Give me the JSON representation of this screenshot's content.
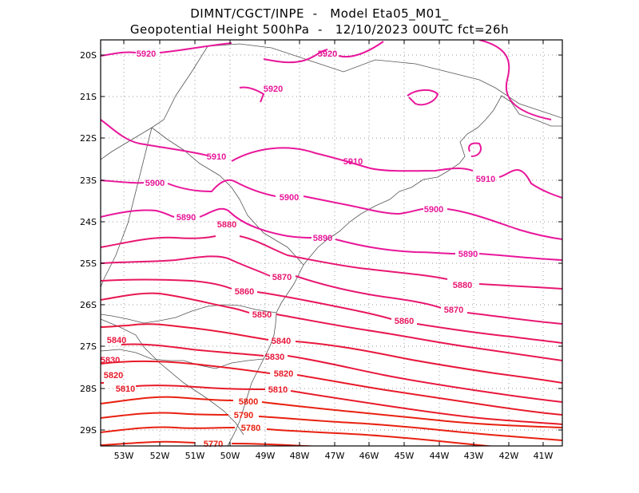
{
  "header": {
    "line1": "DIMNT/CGCT/INPE  -   Model Eta05_M01_",
    "line2": "Geopotential Height 500hPa  -   12/10/2023 00UTC fct=26h"
  },
  "axes": {
    "lat_labels": [
      "20S",
      "21S",
      "22S",
      "23S",
      "24S",
      "25S",
      "26S",
      "27S",
      "28S",
      "29S"
    ],
    "lon_labels": [
      "53W",
      "52W",
      "51W",
      "50W",
      "49W",
      "48W",
      "47W",
      "46W",
      "45W",
      "44W",
      "43W",
      "42W",
      "41W"
    ]
  },
  "contours": [
    {
      "value": "5920",
      "color": "#e8179a"
    },
    {
      "value": "5910",
      "color": "#e8179a"
    },
    {
      "value": "5900",
      "color": "#e8179a"
    },
    {
      "value": "5890",
      "color": "#e8179a"
    },
    {
      "value": "5880",
      "color": "#e81772"
    },
    {
      "value": "5870",
      "color": "#e81772"
    },
    {
      "value": "5860",
      "color": "#e81760"
    },
    {
      "value": "5850",
      "color": "#e81750"
    },
    {
      "value": "5840",
      "color": "#e8173c"
    },
    {
      "value": "5830",
      "color": "#e8173c"
    },
    {
      "value": "5820",
      "color": "#e81a28"
    },
    {
      "value": "5810",
      "color": "#e81a28"
    },
    {
      "value": "5800",
      "color": "#e82010"
    },
    {
      "value": "5790",
      "color": "#e82010"
    },
    {
      "value": "5780",
      "color": "#e82010"
    },
    {
      "value": "5770",
      "color": "#e82010"
    }
  ]
}
